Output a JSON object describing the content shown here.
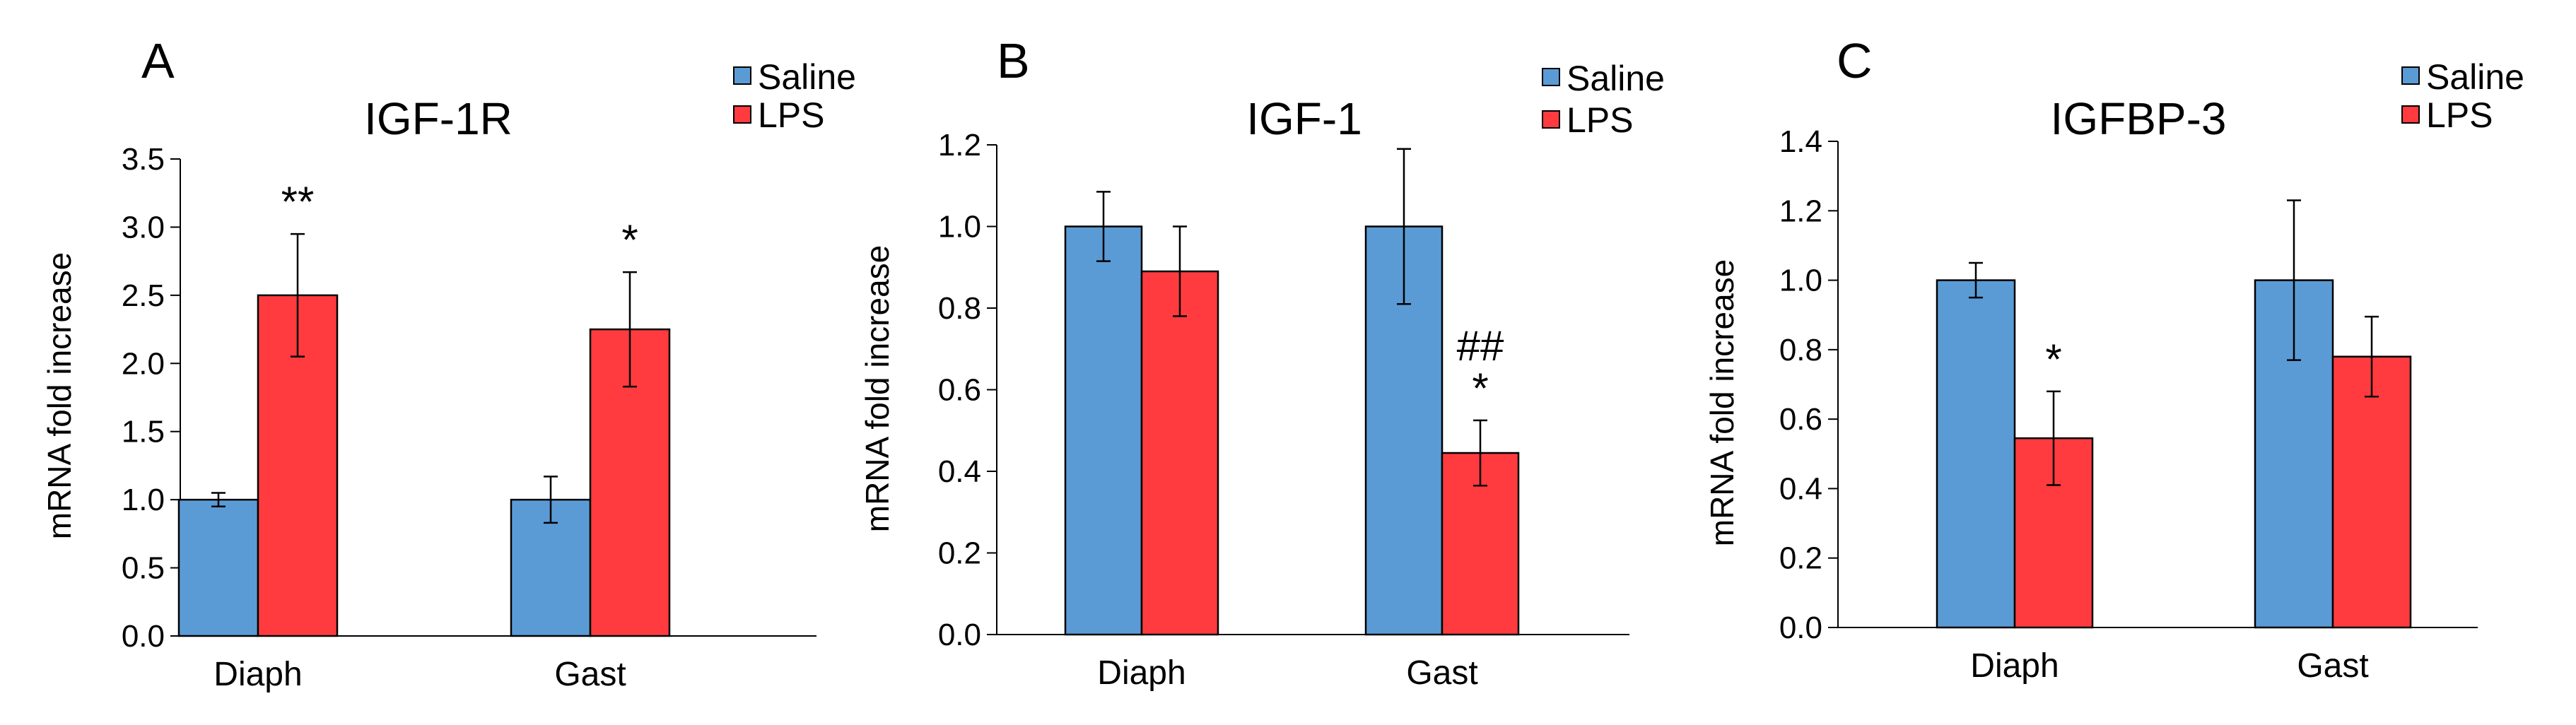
{
  "chart_data": [
    {
      "type": "bar",
      "panel": "A",
      "title": "IGF-1R",
      "xlabel": "",
      "ylabel": "mRNA fold increase",
      "categories": [
        "Diaph",
        "Gast"
      ],
      "ylim": [
        0,
        3.5
      ],
      "yticks": [
        "0.0",
        "0.5",
        "1.0",
        "1.5",
        "2.0",
        "2.5",
        "3.0",
        "3.5"
      ],
      "legend": "top-right",
      "series": [
        {
          "name": "Saline",
          "color": "#5B9BD5",
          "values": [
            1.0,
            1.0
          ],
          "errors": [
            0.05,
            0.17
          ]
        },
        {
          "name": "LPS",
          "color": "#FF3B3F",
          "values": [
            2.5,
            2.25
          ],
          "errors": [
            0.45,
            0.42
          ]
        }
      ],
      "annotations": [
        {
          "category": 0,
          "series": 1,
          "text": "**"
        },
        {
          "category": 1,
          "series": 1,
          "text": "*"
        }
      ]
    },
    {
      "type": "bar",
      "panel": "B",
      "title": "IGF-1",
      "xlabel": "",
      "ylabel": "mRNA fold increase",
      "categories": [
        "Diaph",
        "Gast"
      ],
      "ylim": [
        0,
        1.2
      ],
      "yticks": [
        "0.0",
        "0.2",
        "0.4",
        "0.6",
        "0.8",
        "1.0",
        "1.2"
      ],
      "legend": "top-right",
      "series": [
        {
          "name": "Saline",
          "color": "#5B9BD5",
          "values": [
            1.0,
            1.0
          ],
          "errors": [
            0.085,
            0.19
          ]
        },
        {
          "name": "LPS",
          "color": "#FF3B3F",
          "values": [
            0.89,
            0.445
          ],
          "errors": [
            0.11,
            0.08
          ]
        }
      ],
      "annotations": [
        {
          "category": 1,
          "series": 1,
          "text": "*"
        },
        {
          "category": 1,
          "series": 1,
          "text": "##"
        }
      ]
    },
    {
      "type": "bar",
      "panel": "C",
      "title": "IGFBP-3",
      "xlabel": "",
      "ylabel": "mRNA fold increase",
      "categories": [
        "Diaph",
        "Gast"
      ],
      "ylim": [
        0,
        1.4
      ],
      "yticks": [
        "0.0",
        "0.2",
        "0.4",
        "0.6",
        "0.8",
        "1.0",
        "1.2",
        "1.4"
      ],
      "legend": "top-right",
      "series": [
        {
          "name": "Saline",
          "color": "#5B9BD5",
          "values": [
            1.0,
            1.0
          ],
          "errors": [
            0.05,
            0.23
          ]
        },
        {
          "name": "LPS",
          "color": "#FF3B3F",
          "values": [
            0.545,
            0.78
          ],
          "errors": [
            0.135,
            0.115
          ]
        }
      ],
      "annotations": [
        {
          "category": 0,
          "series": 1,
          "text": "*"
        }
      ]
    }
  ]
}
